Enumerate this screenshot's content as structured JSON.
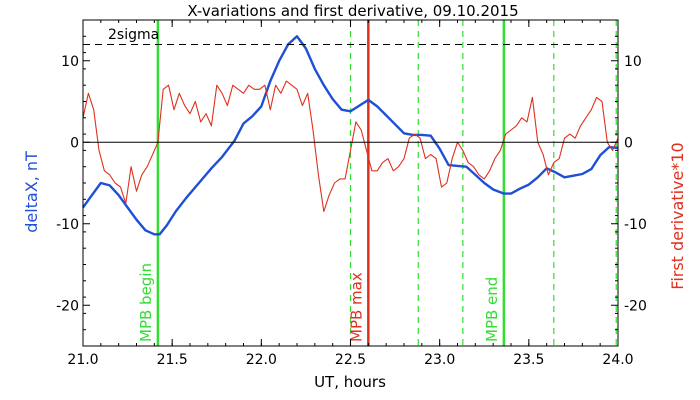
{
  "chart_data": {
    "type": "line",
    "title": "X-variations and first derivative, 09.10.2015",
    "xlabel": "UT, hours",
    "ylabel_left": "deltaX, nT",
    "ylabel_right": "First derivative*10",
    "xlim": [
      21.0,
      24.0
    ],
    "ylim": [
      -25,
      15
    ],
    "x_ticks": [
      21.0,
      21.5,
      22.0,
      22.5,
      23.0,
      23.5,
      24.0
    ],
    "x_tick_labels": [
      "21.0",
      "21.5",
      "22.0",
      "22.5",
      "23.0",
      "23.5",
      "24.0"
    ],
    "y_ticks": [
      -20,
      -10,
      0,
      10
    ],
    "y_tick_labels": [
      "-20",
      "-10",
      "0",
      "10"
    ],
    "sigma_level": 12,
    "sigma_label": "2sigma",
    "colors": {
      "deltaX": "#1f4fd6",
      "derivative": "#e0301e",
      "mpb": "#33dd33",
      "max": "#e0301e",
      "axes": "#000000"
    },
    "vlines": [
      {
        "x": 21.42,
        "color": "mpb",
        "style": "solid",
        "label": "MPB begin"
      },
      {
        "x": 22.5,
        "color": "mpb",
        "style": "dashed",
        "label": ""
      },
      {
        "x": 22.6,
        "color": "max",
        "style": "solid",
        "label": "MPB max"
      },
      {
        "x": 22.88,
        "color": "mpb",
        "style": "dashed",
        "label": ""
      },
      {
        "x": 23.13,
        "color": "mpb",
        "style": "dashed",
        "label": ""
      },
      {
        "x": 23.36,
        "color": "mpb",
        "style": "solid",
        "label": "MPB end"
      },
      {
        "x": 23.64,
        "color": "mpb",
        "style": "dashed",
        "label": ""
      },
      {
        "x": 23.99,
        "color": "mpb",
        "style": "dashed",
        "label": ""
      }
    ],
    "series": [
      {
        "name": "deltaX",
        "color": "deltaX",
        "x": [
          21.0,
          21.05,
          21.1,
          21.15,
          21.2,
          21.25,
          21.3,
          21.35,
          21.4,
          21.43,
          21.47,
          21.52,
          21.58,
          21.65,
          21.72,
          21.78,
          21.85,
          21.9,
          21.95,
          22.0,
          22.05,
          22.1,
          22.15,
          22.2,
          22.25,
          22.3,
          22.35,
          22.4,
          22.45,
          22.5,
          22.55,
          22.6,
          22.65,
          22.7,
          22.75,
          22.8,
          22.85,
          22.9,
          22.95,
          23.0,
          23.05,
          23.1,
          23.15,
          23.2,
          23.25,
          23.3,
          23.36,
          23.4,
          23.45,
          23.5,
          23.55,
          23.6,
          23.65,
          23.7,
          23.75,
          23.8,
          23.85,
          23.9,
          23.95,
          24.0
        ],
        "y": [
          -8,
          -6.5,
          -5,
          -5.3,
          -6.5,
          -8,
          -9.5,
          -10.8,
          -11.3,
          -11.3,
          -10.2,
          -8.5,
          -6.8,
          -5,
          -3.2,
          -1.8,
          0.2,
          2.3,
          3.2,
          4.4,
          7.5,
          10,
          12,
          13,
          11.5,
          9,
          7,
          5.3,
          4,
          3.8,
          4.5,
          5.2,
          4.4,
          3.3,
          2.2,
          1.1,
          0.9,
          0.9,
          0.8,
          -0.8,
          -2.8,
          -2.9,
          -3.0,
          -4.0,
          -5,
          -5.8,
          -6.3,
          -6.3,
          -5.7,
          -5.2,
          -4.3,
          -3.2,
          -3.7,
          -4.3,
          -4.1,
          -3.9,
          -3.3,
          -1.6,
          -0.6,
          -0.7
        ]
      },
      {
        "name": "First derivative*10",
        "color": "derivative",
        "x": [
          21.0,
          21.03,
          21.06,
          21.09,
          21.12,
          21.15,
          21.18,
          21.21,
          21.24,
          21.27,
          21.3,
          21.33,
          21.36,
          21.39,
          21.42,
          21.45,
          21.48,
          21.51,
          21.54,
          21.57,
          21.6,
          21.63,
          21.66,
          21.69,
          21.72,
          21.75,
          21.78,
          21.81,
          21.84,
          21.87,
          21.9,
          21.93,
          21.96,
          21.99,
          22.02,
          22.05,
          22.08,
          22.11,
          22.14,
          22.17,
          22.2,
          22.23,
          22.26,
          22.29,
          22.32,
          22.35,
          22.38,
          22.41,
          22.44,
          22.47,
          22.5,
          22.53,
          22.56,
          22.59,
          22.62,
          22.65,
          22.68,
          22.71,
          22.74,
          22.77,
          22.8,
          22.83,
          22.86,
          22.89,
          22.92,
          22.95,
          22.98,
          23.01,
          23.04,
          23.07,
          23.1,
          23.13,
          23.16,
          23.19,
          23.22,
          23.25,
          23.28,
          23.31,
          23.34,
          23.37,
          23.4,
          23.43,
          23.46,
          23.49,
          23.52,
          23.55,
          23.58,
          23.61,
          23.64,
          23.67,
          23.7,
          23.73,
          23.76,
          23.79,
          23.82,
          23.85,
          23.88,
          23.91,
          23.94,
          23.97,
          24.0
        ],
        "y": [
          3,
          6,
          4,
          -1,
          -3.5,
          -4,
          -5,
          -5.5,
          -7.5,
          -3,
          -6,
          -4,
          -3,
          -1.5,
          0,
          6.5,
          7,
          4,
          6,
          4.5,
          3.5,
          5,
          2.5,
          3.5,
          2,
          7,
          6,
          4.5,
          7,
          6.5,
          6,
          7,
          6.5,
          6.5,
          7,
          4,
          7,
          6,
          7.5,
          7,
          6.5,
          4.5,
          6,
          1.5,
          -4,
          -8.5,
          -6.5,
          -5,
          -4.5,
          -4.5,
          -1,
          2.5,
          1.5,
          -1,
          -3.5,
          -3.5,
          -2.5,
          -2,
          -3.5,
          -3,
          -2,
          0.5,
          1,
          0.5,
          -2,
          -1.5,
          -2,
          -5.5,
          -5,
          -2,
          0,
          -1,
          -2.5,
          -3,
          -4,
          -4.5,
          -3.5,
          -2,
          -1,
          1,
          1.5,
          2,
          3,
          2.5,
          5.5,
          0,
          -1.5,
          -4,
          -2.5,
          -2,
          0.5,
          1,
          0.5,
          2,
          3,
          4,
          5.5,
          5,
          0,
          -1,
          0.5
        ]
      }
    ]
  }
}
